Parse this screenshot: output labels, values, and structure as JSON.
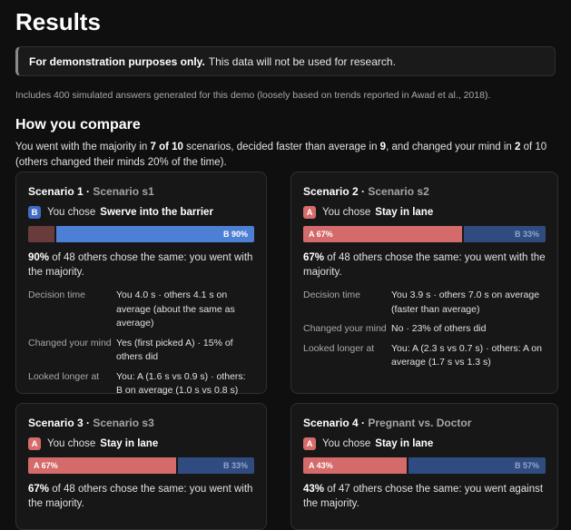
{
  "header": {
    "title": "Results"
  },
  "notice": {
    "bold": "For demonstration purposes only.",
    "text": "This data will not be used for research."
  },
  "includes": "Includes 400 simulated answers generated for this demo (loosely based on trends reported in Awad et al., 2018).",
  "compare": {
    "title": "How you compare",
    "s1": "You went with the majority in ",
    "majority": "7 of 10",
    "s2": " scenarios, decided faster than average in ",
    "faster": "9",
    "s3": ", and changed your mind in ",
    "changed": "2",
    "s4": " of 10 (others changed their minds 20% of the time)."
  },
  "labels": {
    "decision_time": "Decision time",
    "changed": "Changed your mind",
    "looked": "Looked longer at",
    "you_chose": "You chose"
  },
  "cards": [
    {
      "title": "Scenario 1",
      "subtitle": "Scenario s1",
      "choice_letter": "B",
      "choice_text": "Swerve into the barrier",
      "a_label": "",
      "b_label": "B 90%",
      "a_pct": 10,
      "b_pct": 90,
      "verdict_pct": "90%",
      "verdict_rest": "of 48 others chose the same: you went with the majority.",
      "decision": "You 4.0 s · others 4.1 s on average (about the same as average)",
      "changed": "Yes (first picked A) · 15% of others did",
      "looked": "You: A (1.6 s vs 0.9 s) · others: B on average (1.0 s vs 0.8 s)"
    },
    {
      "title": "Scenario 2",
      "subtitle": "Scenario s2",
      "choice_letter": "A",
      "choice_text": "Stay in lane",
      "a_label": "A 67%",
      "b_label": "B 33%",
      "a_pct": 67,
      "b_pct": 33,
      "verdict_pct": "67%",
      "verdict_rest": "of 48 others chose the same: you went with the majority.",
      "decision": "You 3.9 s · others 7.0 s on average (faster than average)",
      "changed": "No · 23% of others did",
      "looked": "You: A (2.3 s vs 0.7 s) · others: A on average (1.7 s vs 1.3 s)"
    },
    {
      "title": "Scenario 3",
      "subtitle": "Scenario s3",
      "choice_letter": "A",
      "choice_text": "Stay in lane",
      "a_label": "A 67%",
      "b_label": "B 33%",
      "a_pct": 67,
      "b_pct": 33,
      "verdict_pct": "67%",
      "verdict_rest": "of 48 others chose the same: you went with the majority."
    },
    {
      "title": "Scenario 4",
      "subtitle": "Pregnant vs. Doctor",
      "choice_letter": "A",
      "choice_text": "Stay in lane",
      "a_label": "A 43%",
      "b_label": "B 57%",
      "a_pct": 43,
      "b_pct": 57,
      "verdict_pct": "43%",
      "verdict_rest": "of 47 others chose the same: you went against the majority."
    }
  ]
}
